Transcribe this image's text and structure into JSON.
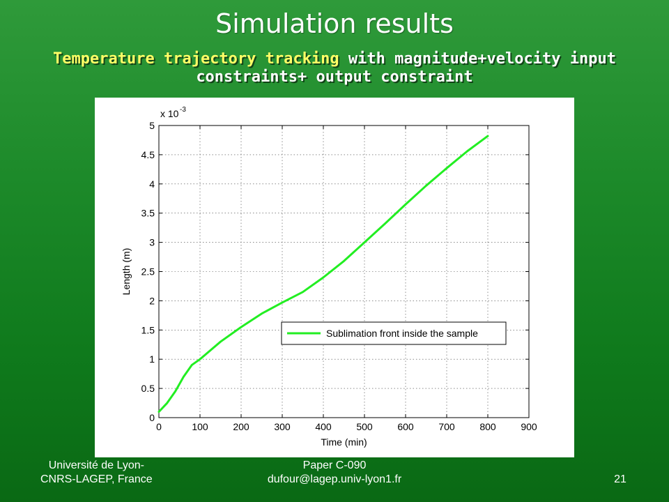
{
  "slide": {
    "title": "Simulation results",
    "subtitle_highlight": "Temperature trajectory tracking",
    "subtitle_rest_line1": " with magnitude+velocity input",
    "subtitle_line2": "constraints+ output constraint"
  },
  "footer": {
    "left_line1": "Université de Lyon-",
    "left_line2": "CNRS-LAGEP, France",
    "center_line1": "Paper C-090",
    "center_line2": "dufour@lagep.univ-lyon1.fr",
    "page_number": "21"
  },
  "colors": {
    "background": "#1d8a2a",
    "highlight": "#ffff66",
    "series": "#22ee22"
  },
  "chart_data": {
    "type": "line",
    "title": "",
    "xlabel": "Time (min)",
    "ylabel": "Length (m)",
    "y_exponent_label": "x 10",
    "y_exponent_power": "-3",
    "xlim": [
      0,
      900
    ],
    "ylim": [
      0,
      5
    ],
    "xticks": [
      "0",
      "100",
      "200",
      "300",
      "400",
      "500",
      "600",
      "700",
      "800",
      "900"
    ],
    "yticks": [
      "0",
      "0.5",
      "1",
      "1.5",
      "2",
      "2.5",
      "3",
      "3.5",
      "4",
      "4.5",
      "5"
    ],
    "grid": true,
    "legend_position": "center-right",
    "series": [
      {
        "name": "Sublimation front inside the sample",
        "x": [
          0,
          20,
          40,
          60,
          80,
          100,
          150,
          200,
          250,
          300,
          350,
          400,
          450,
          500,
          550,
          600,
          650,
          700,
          750,
          800
        ],
        "y": [
          0.1,
          0.25,
          0.45,
          0.7,
          0.9,
          1.0,
          1.3,
          1.55,
          1.78,
          1.97,
          2.15,
          2.4,
          2.68,
          3.0,
          3.32,
          3.65,
          3.97,
          4.27,
          4.56,
          4.82
        ]
      }
    ]
  }
}
